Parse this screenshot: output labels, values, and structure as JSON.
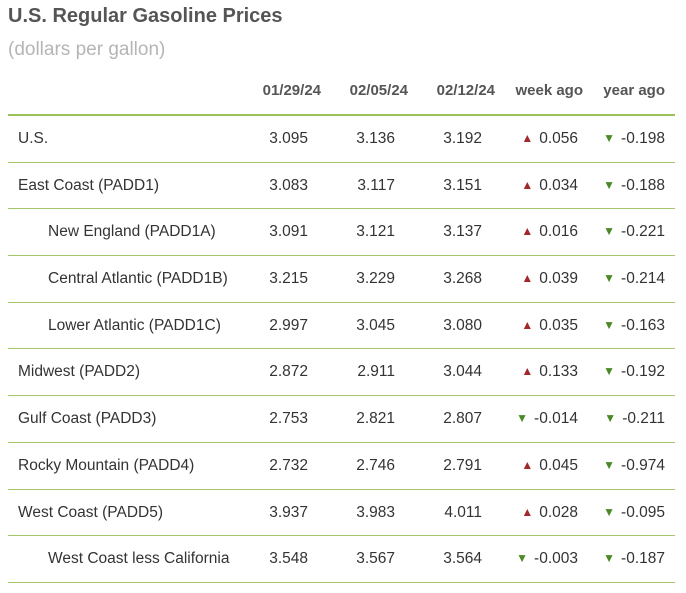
{
  "title": "U.S. Regular Gasoline Prices",
  "subtitle": "(dollars per gallon)",
  "colors": {
    "up": "#a3282c",
    "down": "#4a8a26",
    "rule": "#9bc256"
  },
  "icons": {
    "up": "up-arrow-icon",
    "down": "down-arrow-icon"
  },
  "columns": [
    "01/29/24",
    "02/05/24",
    "02/12/24",
    "week ago",
    "year ago"
  ],
  "rows": [
    {
      "region": "U.S.",
      "sub": false,
      "v1": "3.095",
      "v2": "3.136",
      "v3": "3.192",
      "week": "0.056",
      "week_dir": "up",
      "year": "-0.198",
      "year_dir": "down"
    },
    {
      "region": "East Coast (PADD1)",
      "sub": false,
      "v1": "3.083",
      "v2": "3.117",
      "v3": "3.151",
      "week": "0.034",
      "week_dir": "up",
      "year": "-0.188",
      "year_dir": "down"
    },
    {
      "region": "New England (PADD1A)",
      "sub": true,
      "v1": "3.091",
      "v2": "3.121",
      "v3": "3.137",
      "week": "0.016",
      "week_dir": "up",
      "year": "-0.221",
      "year_dir": "down"
    },
    {
      "region": "Central Atlantic (PADD1B)",
      "sub": true,
      "v1": "3.215",
      "v2": "3.229",
      "v3": "3.268",
      "week": "0.039",
      "week_dir": "up",
      "year": "-0.214",
      "year_dir": "down"
    },
    {
      "region": "Lower Atlantic (PADD1C)",
      "sub": true,
      "v1": "2.997",
      "v2": "3.045",
      "v3": "3.080",
      "week": "0.035",
      "week_dir": "up",
      "year": "-0.163",
      "year_dir": "down"
    },
    {
      "region": "Midwest (PADD2)",
      "sub": false,
      "v1": "2.872",
      "v2": "2.911",
      "v3": "3.044",
      "week": "0.133",
      "week_dir": "up",
      "year": "-0.192",
      "year_dir": "down"
    },
    {
      "region": "Gulf Coast (PADD3)",
      "sub": false,
      "v1": "2.753",
      "v2": "2.821",
      "v3": "2.807",
      "week": "-0.014",
      "week_dir": "down",
      "year": "-0.211",
      "year_dir": "down"
    },
    {
      "region": "Rocky Mountain (PADD4)",
      "sub": false,
      "v1": "2.732",
      "v2": "2.746",
      "v3": "2.791",
      "week": "0.045",
      "week_dir": "up",
      "year": "-0.974",
      "year_dir": "down"
    },
    {
      "region": "West Coast (PADD5)",
      "sub": false,
      "v1": "3.937",
      "v2": "3.983",
      "v3": "4.011",
      "week": "0.028",
      "week_dir": "up",
      "year": "-0.095",
      "year_dir": "down"
    },
    {
      "region": "West Coast less California",
      "sub": true,
      "v1": "3.548",
      "v2": "3.567",
      "v3": "3.564",
      "week": "-0.003",
      "week_dir": "down",
      "year": "-0.187",
      "year_dir": "down"
    }
  ]
}
